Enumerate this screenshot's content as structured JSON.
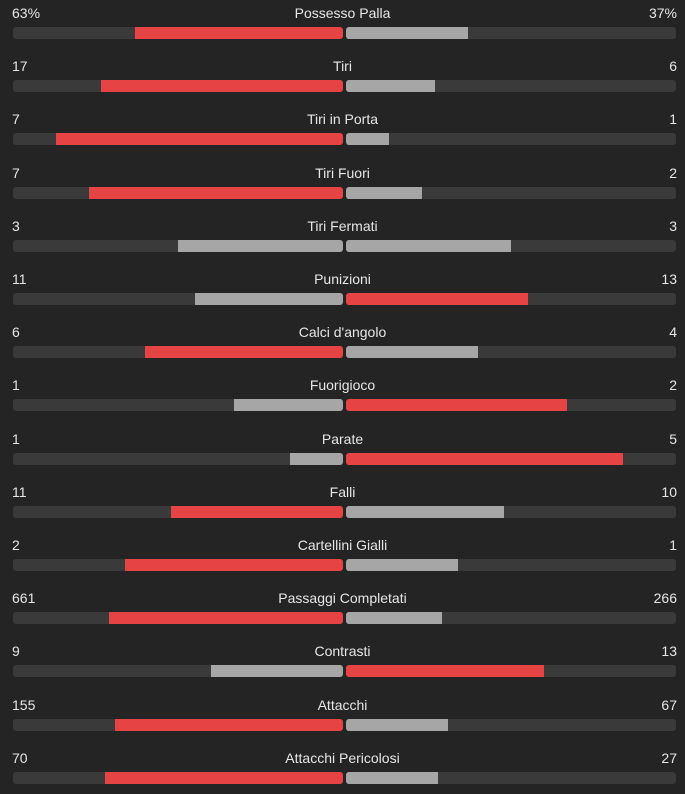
{
  "colors": {
    "background": "#242424",
    "track": "#3a3a3a",
    "leader": "#e64444",
    "trailer": "#a6a6a6",
    "text": "#e6e6e6"
  },
  "stats": [
    {
      "label": "Possesso Palla",
      "home": "63%",
      "away": "37%",
      "home_fraction": 0.63,
      "away_fraction": 0.37
    },
    {
      "label": "Tiri",
      "home": "17",
      "away": "6",
      "home_fraction": 0.733,
      "away_fraction": 0.27
    },
    {
      "label": "Tiri in Porta",
      "home": "7",
      "away": "1",
      "home_fraction": 0.87,
      "away_fraction": 0.13
    },
    {
      "label": "Tiri Fuori",
      "home": "7",
      "away": "2",
      "home_fraction": 0.77,
      "away_fraction": 0.23
    },
    {
      "label": "Tiri Fermati",
      "home": "3",
      "away": "3",
      "home_fraction": 0.5,
      "away_fraction": 0.5
    },
    {
      "label": "Punizioni",
      "home": "11",
      "away": "13",
      "home_fraction": 0.45,
      "away_fraction": 0.55
    },
    {
      "label": "Calci d'angolo",
      "home": "6",
      "away": "4",
      "home_fraction": 0.6,
      "away_fraction": 0.4
    },
    {
      "label": "Fuorigioco",
      "home": "1",
      "away": "2",
      "home_fraction": 0.33,
      "away_fraction": 0.67
    },
    {
      "label": "Parate",
      "home": "1",
      "away": "5",
      "home_fraction": 0.16,
      "away_fraction": 0.84
    },
    {
      "label": "Falli",
      "home": "11",
      "away": "10",
      "home_fraction": 0.52,
      "away_fraction": 0.48
    },
    {
      "label": "Cartellini Gialli",
      "home": "2",
      "away": "1",
      "home_fraction": 0.66,
      "away_fraction": 0.34
    },
    {
      "label": "Passaggi Completati",
      "home": "661",
      "away": "266",
      "home_fraction": 0.71,
      "away_fraction": 0.29
    },
    {
      "label": "Contrasti",
      "home": "9",
      "away": "13",
      "home_fraction": 0.4,
      "away_fraction": 0.6
    },
    {
      "label": "Attacchi",
      "home": "155",
      "away": "67",
      "home_fraction": 0.69,
      "away_fraction": 0.31
    },
    {
      "label": "Attacchi Pericolosi",
      "home": "70",
      "away": "27",
      "home_fraction": 0.72,
      "away_fraction": 0.28
    }
  ]
}
